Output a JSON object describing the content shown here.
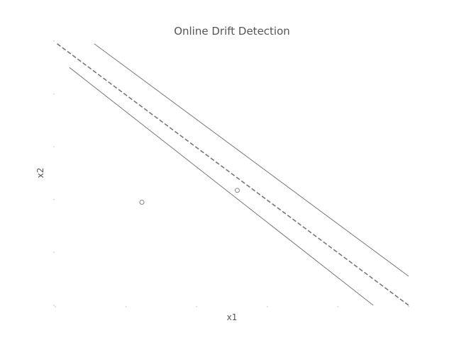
{
  "chart_data": {
    "type": "scatter",
    "title": "Online Drift Detection",
    "xlabel": "x1",
    "ylabel": "x2",
    "xlim": [
      0,
      10
    ],
    "ylim": [
      0,
      10
    ],
    "grid": false,
    "legend": "none",
    "colors": {
      "text": "#555555",
      "lines": "#777777",
      "points": "#888888",
      "ticks": "#d9d9d9"
    },
    "x_ticks": [
      0,
      2,
      4,
      6,
      8,
      10
    ],
    "y_ticks": [
      0,
      2,
      4,
      6,
      8,
      10
    ],
    "points": [
      {
        "x": 2.45,
        "y": 3.9
      },
      {
        "x": 5.15,
        "y": 4.35
      }
    ],
    "lines": [
      {
        "style": "solid",
        "x": [
          1.1,
          10.0
        ],
        "y": [
          9.9,
          1.1
        ]
      },
      {
        "style": "dashed",
        "x": [
          0.05,
          10.0
        ],
        "y": [
          9.9,
          0.0
        ]
      },
      {
        "style": "solid",
        "x": [
          0.4,
          9.0
        ],
        "y": [
          9.0,
          0.0
        ]
      }
    ]
  }
}
